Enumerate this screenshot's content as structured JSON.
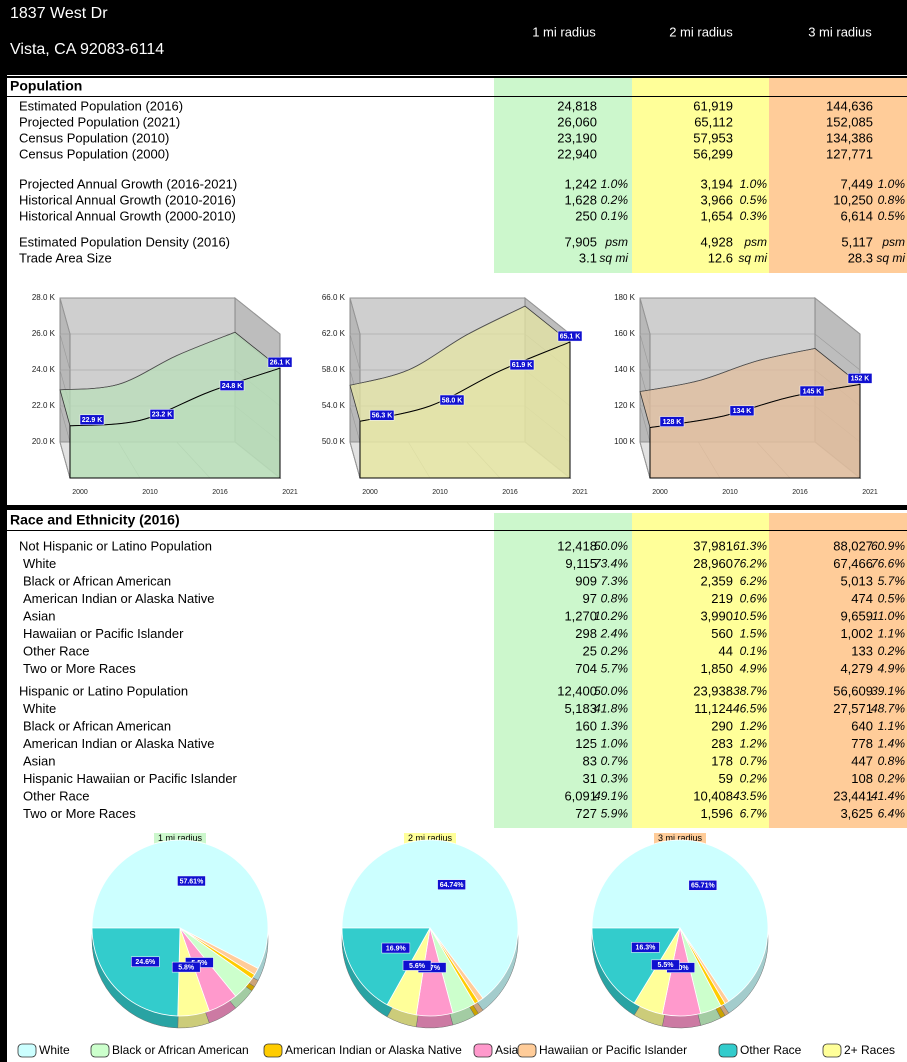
{
  "header": {
    "address": "1837 West Dr",
    "city": "Vista, CA 92083-6114",
    "columns": [
      "1 mi radius",
      "2 mi radius",
      "3 mi radius"
    ],
    "column_colors": [
      "#ccf7cc",
      "#ffff99",
      "#ffcc99"
    ]
  },
  "population": {
    "title": "Population",
    "groups": [
      [
        {
          "label": "Estimated Population (2016)",
          "cells": [
            [
              "24,818"
            ],
            [
              "61,919"
            ],
            [
              "144,636"
            ]
          ]
        },
        {
          "label": "Projected Population (2021)",
          "cells": [
            [
              "26,060"
            ],
            [
              "65,112"
            ],
            [
              "152,085"
            ]
          ]
        },
        {
          "label": "Census Population (2010)",
          "cells": [
            [
              "23,190"
            ],
            [
              "57,953"
            ],
            [
              "134,386"
            ]
          ]
        },
        {
          "label": "Census Population (2000)",
          "cells": [
            [
              "22,940"
            ],
            [
              "56,299"
            ],
            [
              "127,771"
            ]
          ]
        }
      ],
      [
        {
          "label": "Projected Annual Growth (2016-2021)",
          "cells": [
            [
              "1,242",
              "1.0%"
            ],
            [
              "3,194",
              "1.0%"
            ],
            [
              "7,449",
              "1.0%"
            ]
          ]
        },
        {
          "label": "Historical Annual Growth (2010-2016)",
          "cells": [
            [
              "1,628",
              "0.2%"
            ],
            [
              "3,966",
              "0.5%"
            ],
            [
              "10,250",
              "0.8%"
            ]
          ]
        },
        {
          "label": "Historical Annual Growth (2000-2010)",
          "cells": [
            [
              "250",
              "0.1%"
            ],
            [
              "1,654",
              "0.3%"
            ],
            [
              "6,614",
              "0.5%"
            ]
          ]
        }
      ],
      [
        {
          "label": "Estimated Population Density (2016)",
          "cells": [
            [
              "7,905",
              "psm"
            ],
            [
              "4,928",
              "psm"
            ],
            [
              "5,117",
              "psm"
            ]
          ]
        },
        {
          "label": "Trade Area Size",
          "cells": [
            [
              "3.1",
              "sq mi"
            ],
            [
              "12.6",
              "sq mi"
            ],
            [
              "28.3",
              "sq mi"
            ]
          ]
        }
      ]
    ]
  },
  "charts": [
    {
      "type": "area",
      "categories": [
        "2000",
        "2010",
        "2016",
        "2021"
      ],
      "values": [
        22.9,
        23.2,
        24.8,
        26.1
      ],
      "value_labels": [
        "22.9 K",
        "23.2 K",
        "24.8 K",
        "26.1 K"
      ],
      "ylim": [
        20,
        28
      ],
      "yticks": [
        {
          "value": 20,
          "label": "20.0 K"
        },
        {
          "value": 22,
          "label": "22.0 K"
        },
        {
          "value": 24,
          "label": "24.0 K"
        },
        {
          "value": 26,
          "label": "26.0 K"
        },
        {
          "value": 28,
          "label": "28.0 K"
        }
      ],
      "color": "#b9dfb9"
    },
    {
      "type": "area",
      "categories": [
        "2000",
        "2010",
        "2016",
        "2021"
      ],
      "values": [
        56.3,
        58.0,
        61.9,
        65.1
      ],
      "value_labels": [
        "56.3 K",
        "58.0 K",
        "61.9 K",
        "65.1 K"
      ],
      "ylim": [
        50,
        66
      ],
      "yticks": [
        {
          "value": 50,
          "label": "50.0 K"
        },
        {
          "value": 54,
          "label": "54.0 K"
        },
        {
          "value": 58,
          "label": "58.0 K"
        },
        {
          "value": 62,
          "label": "62.0 K"
        },
        {
          "value": 66,
          "label": "66.0 K"
        }
      ],
      "color": "#e6e6a3"
    },
    {
      "type": "area",
      "categories": [
        "2000",
        "2010",
        "2016",
        "2021"
      ],
      "values": [
        128,
        134,
        145,
        152
      ],
      "value_labels": [
        "128 K",
        "134 K",
        "145 K",
        "152 K"
      ],
      "ylim": [
        100,
        180
      ],
      "yticks": [
        {
          "value": 100,
          "label": "100 K"
        },
        {
          "value": 120,
          "label": "120 K"
        },
        {
          "value": 140,
          "label": "140 K"
        },
        {
          "value": 160,
          "label": "160 K"
        },
        {
          "value": 180,
          "label": "180 K"
        }
      ],
      "color": "#e2bd9c"
    }
  ],
  "race": {
    "title": "Race and Ethnicity (2016)",
    "groups": [
      [
        {
          "label": "Not Hispanic or Latino Population",
          "cells": [
            [
              "12,418",
              "50.0%"
            ],
            [
              "37,981",
              "61.3%"
            ],
            [
              "88,027",
              "60.9%"
            ]
          ]
        },
        {
          "label": "White",
          "cells": [
            [
              "9,115",
              "73.4%"
            ],
            [
              "28,960",
              "76.2%"
            ],
            [
              "67,466",
              "76.6%"
            ]
          ]
        },
        {
          "label": "Black or African American",
          "cells": [
            [
              "909",
              "7.3%"
            ],
            [
              "2,359",
              "6.2%"
            ],
            [
              "5,013",
              "5.7%"
            ]
          ]
        },
        {
          "label": "American Indian or Alaska Native",
          "cells": [
            [
              "97",
              "0.8%"
            ],
            [
              "219",
              "0.6%"
            ],
            [
              "474",
              "0.5%"
            ]
          ]
        },
        {
          "label": "Asian",
          "cells": [
            [
              "1,270",
              "10.2%"
            ],
            [
              "3,990",
              "10.5%"
            ],
            [
              "9,659",
              "11.0%"
            ]
          ]
        },
        {
          "label": "Hawaiian or Pacific Islander",
          "cells": [
            [
              "298",
              "2.4%"
            ],
            [
              "560",
              "1.5%"
            ],
            [
              "1,002",
              "1.1%"
            ]
          ]
        },
        {
          "label": "Other Race",
          "cells": [
            [
              "25",
              "0.2%"
            ],
            [
              "44",
              "0.1%"
            ],
            [
              "133",
              "0.2%"
            ]
          ]
        },
        {
          "label": "Two or More Races",
          "cells": [
            [
              "704",
              "5.7%"
            ],
            [
              "1,850",
              "4.9%"
            ],
            [
              "4,279",
              "4.9%"
            ]
          ]
        }
      ],
      [
        {
          "label": "Hispanic or Latino Population",
          "cells": [
            [
              "12,400",
              "50.0%"
            ],
            [
              "23,938",
              "38.7%"
            ],
            [
              "56,609",
              "39.1%"
            ]
          ]
        },
        {
          "label": "White",
          "cells": [
            [
              "5,183",
              "41.8%"
            ],
            [
              "11,124",
              "46.5%"
            ],
            [
              "27,571",
              "48.7%"
            ]
          ]
        },
        {
          "label": "Black or African American",
          "cells": [
            [
              "160",
              "1.3%"
            ],
            [
              "290",
              "1.2%"
            ],
            [
              "640",
              "1.1%"
            ]
          ]
        },
        {
          "label": "American Indian or Alaska Native",
          "cells": [
            [
              "125",
              "1.0%"
            ],
            [
              "283",
              "1.2%"
            ],
            [
              "778",
              "1.4%"
            ]
          ]
        },
        {
          "label": "Asian",
          "cells": [
            [
              "83",
              "0.7%"
            ],
            [
              "178",
              "0.7%"
            ],
            [
              "447",
              "0.8%"
            ]
          ]
        },
        {
          "label": "Hispanic Hawaiian or Pacific Islander",
          "cells": [
            [
              "31",
              "0.3%"
            ],
            [
              "59",
              "0.2%"
            ],
            [
              "108",
              "0.2%"
            ]
          ]
        },
        {
          "label": "Other Race",
          "cells": [
            [
              "6,091",
              "49.1%"
            ],
            [
              "10,408",
              "43.5%"
            ],
            [
              "23,441",
              "41.4%"
            ]
          ]
        },
        {
          "label": "Two or More Races",
          "cells": [
            [
              "727",
              "5.9%"
            ],
            [
              "1,596",
              "6.7%"
            ],
            [
              "3,625",
              "6.4%"
            ]
          ]
        }
      ]
    ]
  },
  "legend": {
    "labels": [
      "White",
      "Black or African American",
      "American Indian or Alaska Native",
      "Asian",
      "Hawaiian or Pacific Islander",
      "Other Race",
      "2+ Races"
    ],
    "colors": [
      "#ccffff",
      "#ccffcc",
      "#ffcc00",
      "#ff99cc",
      "#ffcc99",
      "#33cccc",
      "#ffff99"
    ]
  },
  "pies": [
    {
      "type": "pie",
      "title": "1 mi radius",
      "values": [
        57.61,
        4.3,
        0.9,
        5.5,
        1.3,
        24.6,
        5.8
      ],
      "value_labels": [
        "57.61%",
        null,
        null,
        "5.5%",
        null,
        "24.6%",
        "5.8%"
      ]
    },
    {
      "type": "pie",
      "title": "2 mi radius",
      "values": [
        64.74,
        4.3,
        0.8,
        6.7,
        1.0,
        16.9,
        5.6
      ],
      "value_labels": [
        "64.74%",
        null,
        null,
        "6.7%",
        null,
        "16.9%",
        "5.6%"
      ]
    },
    {
      "type": "pie",
      "title": "3 mi radius",
      "values": [
        65.71,
        3.9,
        0.9,
        7.0,
        0.8,
        16.3,
        5.5
      ],
      "value_labels": [
        "65.71%",
        null,
        null,
        "7.0%",
        null,
        "16.3%",
        "5.5%"
      ]
    }
  ]
}
